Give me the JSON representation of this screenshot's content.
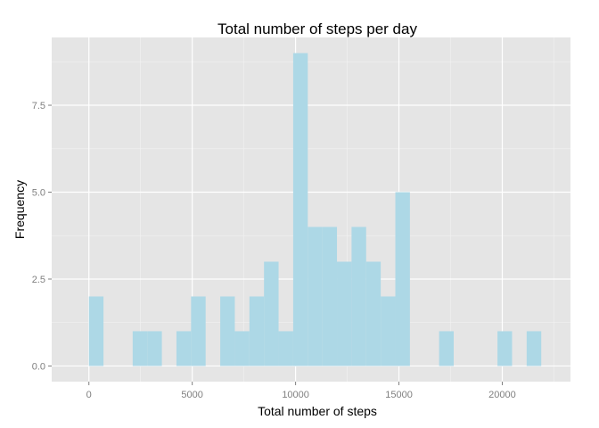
{
  "chart_data": {
    "type": "bar",
    "title": "Total number of steps per day",
    "xlabel": "Total number of steps",
    "ylabel": "Frequency",
    "xlim": [
      -1800,
      23300
    ],
    "ylim": [
      -0.45,
      9.45
    ],
    "bin_width": 706,
    "x_ticks": [
      0,
      5000,
      10000,
      15000,
      20000
    ],
    "y_ticks": [
      0.0,
      2.5,
      5.0,
      7.5
    ],
    "x_tick_labels": [
      "0",
      "5000",
      "10000",
      "15000",
      "20000"
    ],
    "y_tick_labels": [
      "0.0",
      "2.5",
      "5.0",
      "7.5"
    ],
    "bins": [
      {
        "x": 0,
        "count": 2
      },
      {
        "x": 706,
        "count": 0
      },
      {
        "x": 1412,
        "count": 0
      },
      {
        "x": 2118,
        "count": 1
      },
      {
        "x": 2824,
        "count": 1
      },
      {
        "x": 3530,
        "count": 0
      },
      {
        "x": 4236,
        "count": 1
      },
      {
        "x": 4942,
        "count": 2
      },
      {
        "x": 5648,
        "count": 0
      },
      {
        "x": 6354,
        "count": 2
      },
      {
        "x": 7060,
        "count": 1
      },
      {
        "x": 7766,
        "count": 2
      },
      {
        "x": 8472,
        "count": 3
      },
      {
        "x": 9178,
        "count": 1
      },
      {
        "x": 9884,
        "count": 9
      },
      {
        "x": 10590,
        "count": 4
      },
      {
        "x": 11296,
        "count": 4
      },
      {
        "x": 12002,
        "count": 3
      },
      {
        "x": 12708,
        "count": 4
      },
      {
        "x": 13414,
        "count": 3
      },
      {
        "x": 14120,
        "count": 2
      },
      {
        "x": 14826,
        "count": 5
      },
      {
        "x": 15532,
        "count": 0
      },
      {
        "x": 16238,
        "count": 0
      },
      {
        "x": 16944,
        "count": 1
      },
      {
        "x": 17650,
        "count": 0
      },
      {
        "x": 18356,
        "count": 0
      },
      {
        "x": 19062,
        "count": 0
      },
      {
        "x": 19768,
        "count": 1
      },
      {
        "x": 20474,
        "count": 0
      },
      {
        "x": 21180,
        "count": 1
      }
    ],
    "grid": true,
    "colors": {
      "panel": "#e5e5e5",
      "grid_major": "#ffffff",
      "grid_minor": "#f2f2f2",
      "bar_fill": "#add8e6"
    }
  }
}
